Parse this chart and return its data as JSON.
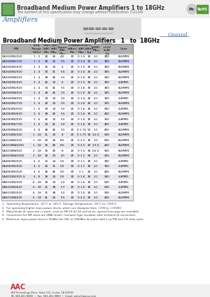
{
  "title": "Broadband Medium Power Amplifiers 1 to 18GHz",
  "subtitle": "The content of this specification may change without notification 7/21/09",
  "section_label": "Amplifiers",
  "coaxial_label": "Coaxial",
  "table_title": "Broadband Medium Power Amplifiers   1   to  18GHz",
  "headers": [
    "P/N",
    "Freq. Range\n(GHz)",
    "Gain\n(dB)\nMin",
    "Gain\n(dB)\nMax",
    "Noise Figure\n(dB)\nMax",
    "P1dB(dBm)\n(dBm)\nMin",
    "Flatness\n(dB)\nMax",
    "IP3\n(dBm)\nTyp",
    "VSWR\nMax",
    "Current\n+12V (mA)\nTyp",
    "Case"
  ],
  "col_headers": [
    "P/N",
    "Freq. Range\n(GHz)",
    "Gain (dB)\nMin  Max",
    "Noise Figure\n(dB) Max",
    "P1dB(dBm)\n(dBm) Min",
    "Flatness\n(dB) Max",
    "IP3\n(dBm) Typ",
    "VSWR\nMax",
    "Current\n+12V (mA)\nTyp",
    "Case"
  ],
  "rows": [
    [
      "CA1020N2020",
      "1 - 2",
      "20",
      "26",
      "4.0",
      "20",
      "0 1.5",
      "30",
      "2:1",
      "300",
      "KLSMM1"
    ],
    [
      "CA2040N2120",
      "1 - 2",
      "18",
      "24",
      "5.5",
      "20",
      "0 1.4",
      "30",
      "2:1",
      "300",
      "KLSMM1"
    ],
    [
      "CA2040N2020",
      "2 - 4",
      "26",
      "33",
      "6",
      "20",
      "0 1.5",
      "30",
      "2:1",
      "300",
      "KLSMM1"
    ],
    [
      "CA2040N2920",
      "2 - 4",
      "34",
      "41",
      "5.5",
      "20",
      "0 1.6",
      "30",
      "2:1",
      "300",
      "KLSMM1"
    ],
    [
      "CA2040N4020",
      "2 - 4",
      "38",
      "46",
      "5.5",
      "20",
      "0 1.6",
      "30",
      "2:1",
      "300",
      "KLSMM1"
    ],
    [
      "CA2040N2025",
      "2 - 4",
      "26",
      "33",
      "6",
      "20",
      "0 1.5",
      "30",
      "2:1",
      "300",
      "4.4MM1"
    ],
    [
      "CA2040N2920",
      "2 - 4",
      "34",
      "41",
      "5.5",
      "20",
      "0 1.6",
      "30",
      "2:1",
      "300",
      "KLSMM1"
    ],
    [
      "CA2040N4020",
      "2 - 4",
      "38",
      "46",
      "5.5",
      "20",
      "0 1.6",
      "30",
      "2:1",
      "300",
      "KLSMM1"
    ],
    [
      "CA2040N4925",
      "2 - 4",
      "39",
      "33",
      "5.0",
      "20",
      "0 1.6",
      "30",
      "2:1",
      "350",
      "4.4MM1"
    ],
    [
      "CA2040N3720",
      "2 - 6",
      "18",
      "24",
      "5.5",
      "20",
      "0 1.6",
      "30",
      "2:1",
      "350",
      "KLSMM1"
    ],
    [
      "CA2060N2020",
      "2 - 6",
      "39",
      "33",
      "5.0",
      "20",
      "0 1.6",
      "30",
      "2:1",
      "350",
      "4.4MM1"
    ],
    [
      "CA2060N2620",
      "2 - 6",
      "38",
      "46",
      "5.5",
      "20",
      "0 1.6",
      "30",
      "2:1",
      "400",
      "KLSMM1"
    ],
    [
      "CA2060N2025",
      "2 - 6",
      "26",
      "33",
      "5.0",
      "20",
      "0 1.6",
      "30",
      "2:1",
      "350",
      "4.4MM1"
    ],
    [
      "CA2060N2720",
      "2 - 6",
      "34",
      "41",
      "5.0",
      "20",
      "0 1.6",
      "30",
      "2:1",
      "400",
      "4.4MM1"
    ],
    [
      "CA2080N4020",
      "2 - 8",
      "38",
      "46",
      "5.5",
      "25",
      "0 1.75",
      "50",
      "2:1",
      "450",
      "KLSMM1"
    ],
    [
      "CA1018N2020",
      "1 - 18",
      "11",
      "20",
      "8",
      "20",
      "0 1.75",
      "30",
      "2:2.5",
      "500",
      "KLSMM1"
    ],
    [
      "CA1018N3020",
      "1 - 18",
      "20",
      "26",
      "8.0",
      "20",
      "0 2.5",
      "30",
      "2:3",
      "500",
      "KLSMM1"
    ],
    [
      "CA1018N4020S",
      "1 - 18",
      "35",
      "45",
      "8.0",
      "20",
      "0 2.5",
      "30",
      "2:3.5",
      "400",
      "KLSMM1"
    ],
    [
      "CA2018N4020",
      "2 - 18",
      "35",
      "45",
      "8",
      "20",
      "0 3.5",
      "30",
      "0:2.5",
      "500",
      "KLSMM1"
    ],
    [
      "CA2018N4020Z",
      "2 - 18",
      "18",
      "24",
      "4.1",
      "20",
      "0 1.1",
      "20",
      "2:1",
      "250",
      "KLSMM1"
    ],
    [
      "CA4060N2025",
      "4 - 6",
      "13",
      "24",
      "0.5",
      "20",
      "0 1.1",
      "30",
      "2:1",
      "300",
      "4.4MM1"
    ],
    [
      "CA4060N2020",
      "4 - 6",
      "26",
      "31",
      "0.5",
      "20",
      "0 1.1",
      "30",
      "2:1",
      "350",
      "4.4MM1"
    ],
    [
      "CA4060N3020",
      "4 - 6",
      "36",
      "46",
      "0.0",
      "20",
      "0 1",
      "20",
      "2:1",
      "400",
      "KLSMM1"
    ],
    [
      "CA4010N2025-S",
      "4 - 8",
      "18",
      "24",
      "0.5",
      "20",
      "0 1.6",
      "30",
      "2:1",
      "300",
      "4.4MM1"
    ],
    [
      "CA6010N2020",
      "6 - 18",
      "18",
      "24",
      "5.2",
      "20",
      "0 1.6",
      "30",
      "2:1",
      "500",
      "4.4MM1"
    ],
    [
      "CA6010N2620",
      "6 - 18",
      "31",
      "38",
      "5.7",
      "20",
      "0 1.6",
      "30",
      "2:1",
      "500",
      "4.4MM1"
    ],
    [
      "CA6010N3020",
      "6 - 18",
      "31",
      "38",
      "5.2",
      "20",
      "0 1.6",
      "30",
      "2:1",
      "500",
      "KLSMM1"
    ],
    [
      "CA6010N4020",
      "6 - 18",
      "41",
      "55",
      "5.5",
      "20",
      "0 2.2",
      "30",
      "2:1",
      "400",
      "KLSMM1"
    ]
  ],
  "notes": [
    "1.  Operating Temperature: -55°C to +85°C. Storage Temperature: -65°C to +150°C.",
    "2.  For operating higher input power levels, which can dissipate from +10V to +15VDC.",
    "3.  Many kinds of cases are in stock, such as SM-10-41-35 and so on, special housings are available.",
    "4.  Connectors for SM cases are SMA (male). Insulator type insulator after terminal of connectors.",
    "5.  Maximum input power level is 25dBm for CW, or 100dBm for pulse with 1 μs PW and 1% duty cycle."
  ],
  "company": "AAC",
  "company_full": "188 Technology Drive, Suite 111, Irvine, CA 92618",
  "phone": "Tel: 949-453-9888  •  Fax: 943-453-9889  •  Email: sales@aacca.com",
  "website": "www.aanplifiers.com",
  "bg_color": "#ffffff",
  "header_bg": "#c8c8c8",
  "alt_row_bg": "#e8e8f0",
  "highlight_row": 1,
  "highlight_color": "#d0d0ff"
}
